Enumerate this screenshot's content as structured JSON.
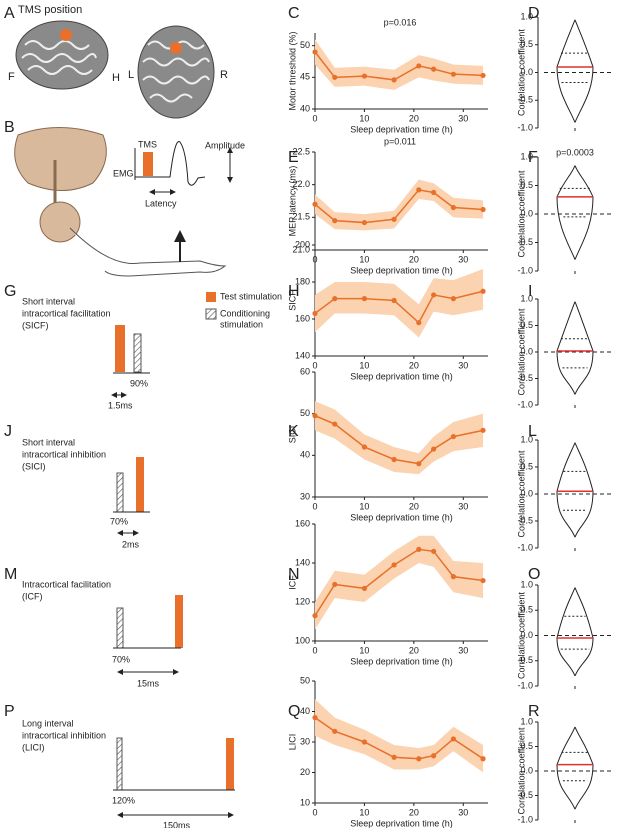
{
  "panels": [
    "A",
    "B",
    "C",
    "D",
    "E",
    "F",
    "G",
    "H",
    "I",
    "J",
    "K",
    "L",
    "M",
    "N",
    "O",
    "P",
    "Q",
    "R"
  ],
  "diagram": {
    "tms_position": "TMS position",
    "directions": [
      "F",
      "H",
      "L",
      "R"
    ],
    "tms": "TMS",
    "emg": "EMG",
    "amplitude": "Amplitude",
    "latency": "Latency",
    "legend": {
      "test": "Test stimulation",
      "conditioning": [
        "Conditioning",
        "stimulation"
      ]
    },
    "protocols": [
      {
        "title": [
          "Short interval",
          "intracortical facilitation",
          "(SICF)"
        ],
        "intensity": "90%",
        "interval": "1.5ms"
      },
      {
        "title": [
          "Short interval",
          "intracortical inhibition",
          "(SICI)"
        ],
        "intensity": "70%",
        "interval": "2ms"
      },
      {
        "title": [
          "Intracortical facilitation",
          "(ICF)"
        ],
        "intensity": "70%",
        "interval": "15ms"
      },
      {
        "title": [
          "Long interval",
          "intracortical inhibition",
          "(LICI)"
        ],
        "intensity": "120%",
        "interval": "150ms"
      }
    ]
  },
  "chart_data": [
    {
      "type": "line",
      "y_label": "Motor threshold (%)",
      "x_label": "Sleep deprivation time (h)",
      "annotation": "p=0.016",
      "x": [
        0,
        4,
        10,
        16,
        21,
        24,
        28,
        34
      ],
      "series": [
        {
          "values": [
            49,
            45,
            45.2,
            44.6,
            46.8,
            46.3,
            45.5,
            45.3
          ],
          "lower": [
            47,
            43.5,
            43.7,
            43,
            45,
            44.5,
            44,
            43.8
          ],
          "upper": [
            51,
            46.5,
            46.7,
            46.2,
            48.5,
            48,
            47,
            46.8
          ],
          "color": "#e8702a",
          "band_color": "#fbd3b0"
        }
      ],
      "xlim": [
        0,
        35
      ],
      "xticks": [
        0,
        10,
        20,
        30
      ],
      "ylim": [
        40,
        52
      ],
      "yticks": [
        40,
        45,
        50
      ]
    },
    {
      "type": "violin",
      "y_label": "Correlation coefficient",
      "min": -0.9,
      "q1": -0.18,
      "median": 0.1,
      "q3": 0.35,
      "max": 0.95,
      "ylim": [
        -1,
        1
      ],
      "yticks": [
        {
          "value": 1,
          "label": "1.0"
        },
        0.5,
        {
          "value": 0,
          "label": "0.0"
        },
        -0.5,
        {
          "value": -1,
          "label": "-1.0"
        }
      ],
      "ref_line": 0,
      "color": "#222",
      "median_color": "#e03030"
    },
    {
      "type": "line",
      "y_label": "MEP latency  (ms)",
      "x_label": "Sleep deprivation time (h)",
      "annotation": "p=0.011",
      "x": [
        0,
        4,
        10,
        16,
        21,
        24,
        28,
        34
      ],
      "series": [
        {
          "values": [
            21.7,
            21.45,
            21.42,
            21.47,
            21.92,
            21.88,
            21.65,
            21.62
          ],
          "lower": [
            21.55,
            21.32,
            21.3,
            21.33,
            21.78,
            21.75,
            21.5,
            21.48
          ],
          "upper": [
            21.85,
            21.58,
            21.55,
            21.6,
            22.08,
            22.02,
            21.8,
            21.76
          ],
          "color": "#e8702a",
          "band_color": "#fbd3b0"
        }
      ],
      "xlim": [
        0,
        35
      ],
      "xticks": [
        0,
        10,
        20,
        30
      ],
      "ylim": [
        21,
        22.5
      ],
      "yticks": [
        {
          "value": 21,
          "label": "21.0"
        },
        21.5,
        {
          "value": 22,
          "label": "22.0"
        },
        22.5
      ]
    },
    {
      "type": "violin",
      "y_label": "Correlation coefficient",
      "annotation": "p=0.0003",
      "min": -0.8,
      "q1": -0.05,
      "median": 0.3,
      "q3": 0.45,
      "max": 0.85,
      "ylim": [
        -1,
        1
      ],
      "yticks": [
        {
          "value": 1,
          "label": "1.0"
        },
        0.5,
        {
          "value": 0,
          "label": "0.0"
        },
        -0.5,
        {
          "value": -1,
          "label": "-1.0"
        }
      ],
      "ref_line": 0,
      "color": "#222",
      "median_color": "#e03030"
    },
    {
      "type": "line",
      "y_label": "SICF",
      "x_label": "Sleep deprivation time (h)",
      "x": [
        0,
        4,
        10,
        16,
        21,
        24,
        28,
        34
      ],
      "series": [
        {
          "values": [
            163,
            171,
            171,
            170,
            158,
            173,
            171,
            175
          ],
          "lower": [
            153,
            163,
            163,
            162,
            150,
            164,
            162,
            165
          ],
          "upper": [
            173,
            180,
            180,
            179,
            168,
            182,
            181,
            187
          ],
          "color": "#e8702a",
          "band_color": "#fbd3b0"
        }
      ],
      "xlim": [
        0,
        35
      ],
      "xticks": [
        0,
        10,
        20,
        30
      ],
      "ylim": [
        140,
        200
      ],
      "yticks": [
        140,
        160,
        180,
        200
      ]
    },
    {
      "type": "violin",
      "y_label": "Correlation coefficient",
      "min": -0.8,
      "q1": -0.3,
      "median": 0.02,
      "q3": 0.25,
      "max": 0.95,
      "ylim": [
        -1,
        1
      ],
      "yticks": [
        {
          "value": 1,
          "label": "1.0"
        },
        0.5,
        {
          "value": 0,
          "label": "0.0"
        },
        -0.5,
        {
          "value": -1,
          "label": "-1.0"
        }
      ],
      "ref_line": 0,
      "color": "#222",
      "median_color": "#e03030"
    },
    {
      "type": "line",
      "y_label": "SICI",
      "x_label": "Sleep deprivation time (h)",
      "x": [
        0,
        4,
        10,
        16,
        21,
        24,
        28,
        34
      ],
      "series": [
        {
          "values": [
            49.5,
            47.5,
            42,
            39,
            38,
            41.5,
            44.5,
            46
          ],
          "lower": [
            46,
            44,
            39,
            36,
            35.5,
            38.5,
            41,
            42
          ],
          "upper": [
            53,
            51,
            45,
            42,
            40.5,
            44.5,
            48,
            50
          ],
          "color": "#e8702a",
          "band_color": "#fbd3b0"
        }
      ],
      "xlim": [
        0,
        35
      ],
      "xticks": [
        0,
        10,
        20,
        30
      ],
      "ylim": [
        30,
        60
      ],
      "yticks": [
        30,
        40,
        50,
        60
      ]
    },
    {
      "type": "violin",
      "y_label": "Correlation coefficient",
      "min": -0.8,
      "q1": -0.3,
      "median": 0.05,
      "q3": 0.42,
      "max": 0.95,
      "ylim": [
        -1,
        1
      ],
      "yticks": [
        {
          "value": 1,
          "label": "1.0"
        },
        0.5,
        {
          "value": 0,
          "label": "0.0"
        },
        -0.5,
        {
          "value": -1,
          "label": "-1.0"
        }
      ],
      "ref_line": 0,
      "color": "#222",
      "median_color": "#e03030"
    },
    {
      "type": "line",
      "y_label": "ICF",
      "x_label": "Sleep deprivation time (h)",
      "x": [
        0,
        4,
        10,
        16,
        21,
        24,
        28,
        34
      ],
      "series": [
        {
          "values": [
            113,
            129,
            127,
            139,
            147,
            146,
            133,
            131
          ],
          "lower": [
            106,
            122,
            120,
            132,
            140,
            138,
            125,
            122
          ],
          "upper": [
            120,
            136,
            134,
            146,
            154,
            154,
            141,
            140
          ],
          "color": "#e8702a",
          "band_color": "#fbd3b0"
        }
      ],
      "xlim": [
        0,
        35
      ],
      "xticks": [
        0,
        10,
        20,
        30
      ],
      "ylim": [
        100,
        160
      ],
      "yticks": [
        100,
        120,
        140,
        160
      ]
    },
    {
      "type": "violin",
      "y_label": "Correlation coefficient",
      "min": -0.8,
      "q1": -0.27,
      "median": -0.05,
      "q3": 0.38,
      "max": 0.95,
      "ylim": [
        -1,
        1
      ],
      "yticks": [
        {
          "value": 1,
          "label": "1.0"
        },
        0.5,
        {
          "value": 0,
          "label": "0.0"
        },
        -0.5,
        {
          "value": -1,
          "label": "-1.0"
        }
      ],
      "ref_line": 0,
      "color": "#222",
      "median_color": "#e03030"
    },
    {
      "type": "line",
      "y_label": "LICI",
      "x_label": "Sleep deprivation time (h)",
      "x": [
        0,
        4,
        10,
        16,
        21,
        24,
        28,
        34
      ],
      "series": [
        {
          "values": [
            38,
            33.5,
            30,
            25,
            24.5,
            25.5,
            31,
            24.5
          ],
          "lower": [
            32,
            29,
            26,
            21,
            21,
            22,
            27,
            20
          ],
          "upper": [
            44,
            38,
            34,
            29,
            28,
            29,
            35,
            29
          ],
          "color": "#e8702a",
          "band_color": "#fbd3b0"
        }
      ],
      "xlim": [
        0,
        35
      ],
      "xticks": [
        0,
        10,
        20,
        30
      ],
      "ylim": [
        10,
        50
      ],
      "yticks": [
        10,
        20,
        30,
        40,
        50
      ]
    },
    {
      "type": "violin",
      "y_label": "Correlation coefficient",
      "min": -0.78,
      "q1": -0.2,
      "median": 0.13,
      "q3": 0.38,
      "max": 0.9,
      "ylim": [
        -1,
        1
      ],
      "yticks": [
        {
          "value": 1,
          "label": "1.0"
        },
        0.5,
        {
          "value": 0,
          "label": "0.0"
        },
        -0.5,
        {
          "value": -1,
          "label": "-1.0"
        }
      ],
      "ref_line": 0,
      "color": "#222",
      "median_color": "#e03030"
    }
  ]
}
